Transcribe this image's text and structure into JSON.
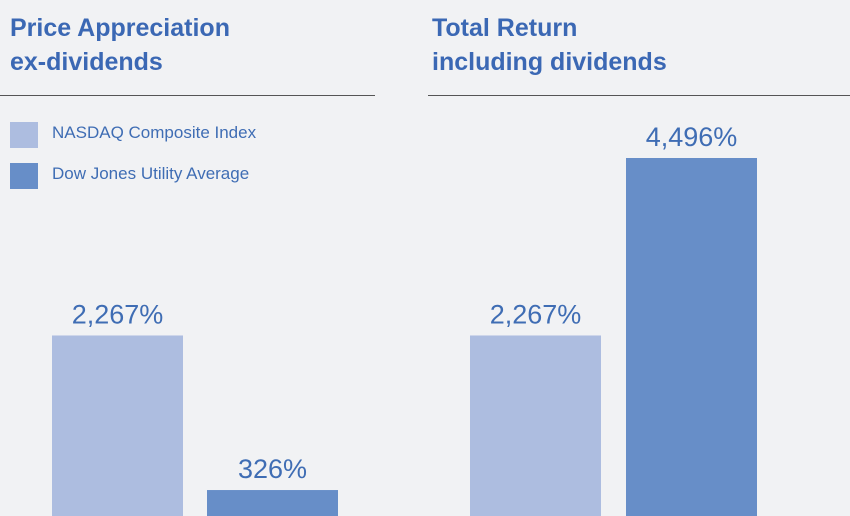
{
  "chart_data": [
    {
      "type": "bar",
      "title": [
        "Price Appreciation",
        "ex-dividends"
      ],
      "series": [
        {
          "name": "NASDAQ Composite Index",
          "color": "#adbde0",
          "values": [
            2267
          ],
          "value_labels": [
            "2,267%"
          ]
        },
        {
          "name": "Dow Jones Utility Average",
          "color": "#678ec8",
          "values": [
            326
          ],
          "value_labels": [
            "326%"
          ]
        }
      ]
    },
    {
      "type": "bar",
      "title": [
        "Total Return",
        "including dividends"
      ],
      "series": [
        {
          "color": "#adbde0",
          "values": [
            2267
          ],
          "value_labels": [
            "2,267%"
          ]
        },
        {
          "color": "#678ec8",
          "values": [
            4496
          ],
          "value_labels": [
            "4,496%"
          ]
        }
      ]
    }
  ]
}
